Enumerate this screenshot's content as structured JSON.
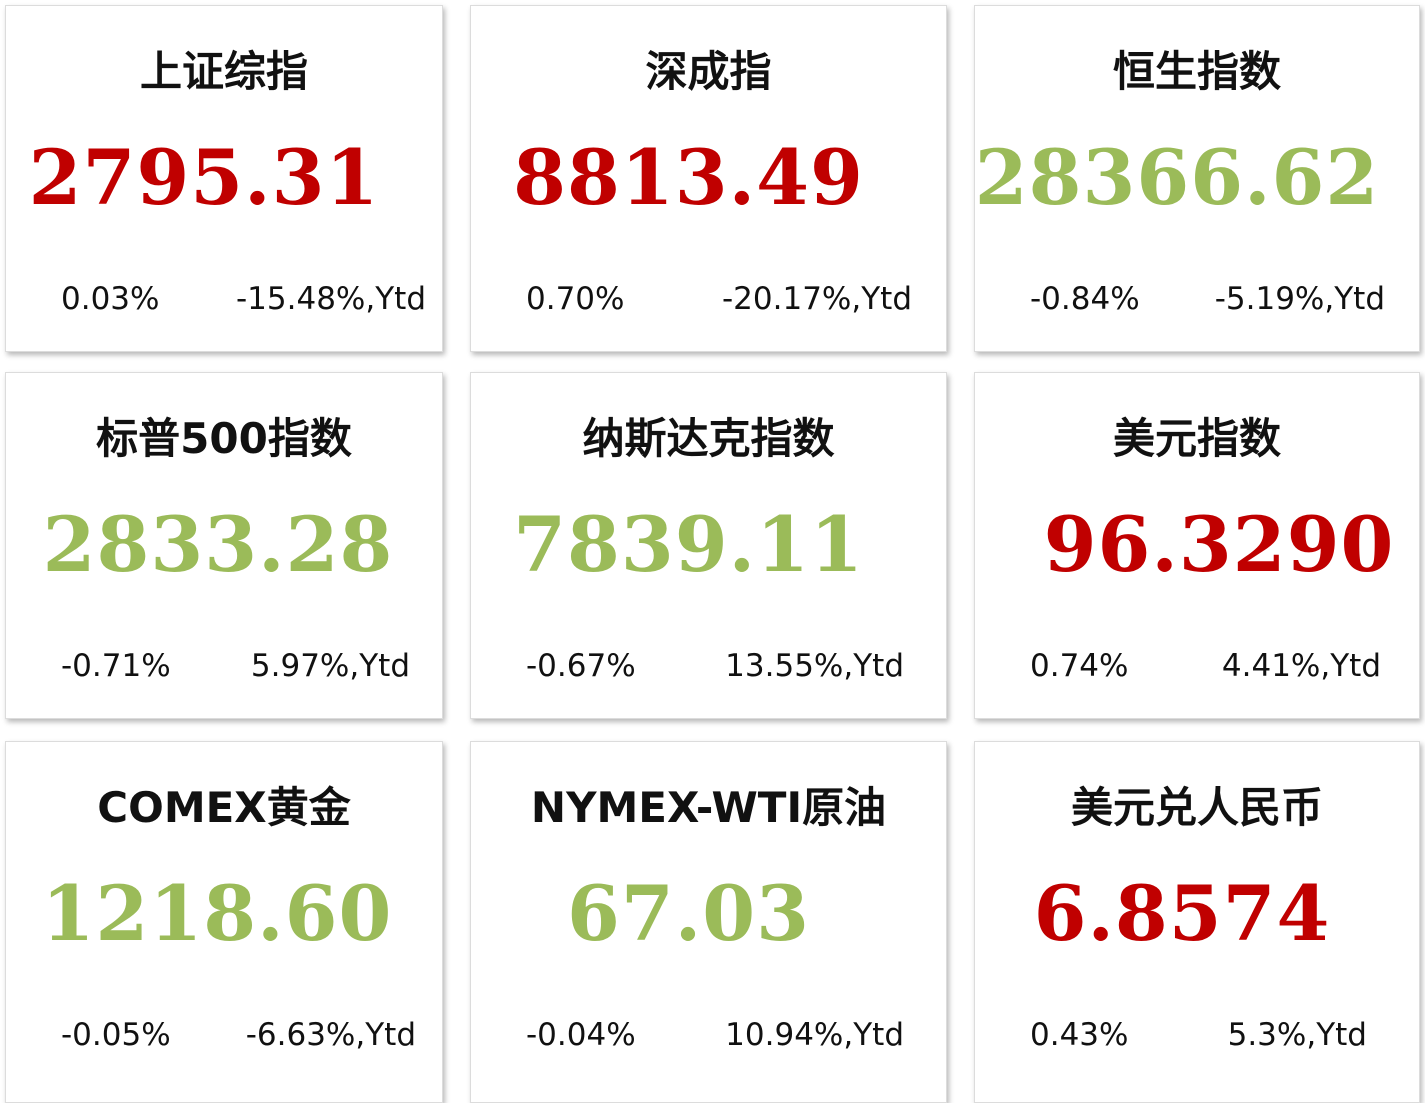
{
  "cards": [
    {
      "title": "上证综指",
      "value": "2795.31",
      "value_color": "#c00000",
      "change": "0.03%",
      "ytd": "-15.48%,Ytd"
    },
    {
      "title": "深成指",
      "value": "8813.49",
      "value_color": "#c00000",
      "change": "0.70%",
      "ytd": "-20.17%,Ytd"
    },
    {
      "title": "恒生指数",
      "value": "28366.62",
      "value_color": "#9bbb59",
      "change": "-0.84%",
      "ytd": "-5.19%,Ytd"
    },
    {
      "title": "标普500指数",
      "value": "2833.28",
      "value_color": "#9bbb59",
      "change": "-0.71%",
      "ytd": "5.97%,Ytd"
    },
    {
      "title": "纳斯达克指数",
      "value": "7839.11",
      "value_color": "#9bbb59",
      "change": "-0.67%",
      "ytd": "13.55%,Ytd"
    },
    {
      "title": "美元指数",
      "value": "96.3290",
      "value_color": "#c00000",
      "change": "0.74%",
      "ytd": "4.41%,Ytd"
    },
    {
      "title": "COMEX黄金",
      "value": "1218.60",
      "value_color": "#9bbb59",
      "change": "-0.05%",
      "ytd": "-6.63%,Ytd"
    },
    {
      "title": "NYMEX-WTI原油",
      "value": "67.03",
      "value_color": "#9bbb59",
      "change": "-0.04%",
      "ytd": "10.94%,Ytd"
    },
    {
      "title": "美元兑人民币",
      "value": "6.8574",
      "value_color": "#c00000",
      "change": "0.43%",
      "ytd": "5.3%,Ytd"
    }
  ]
}
